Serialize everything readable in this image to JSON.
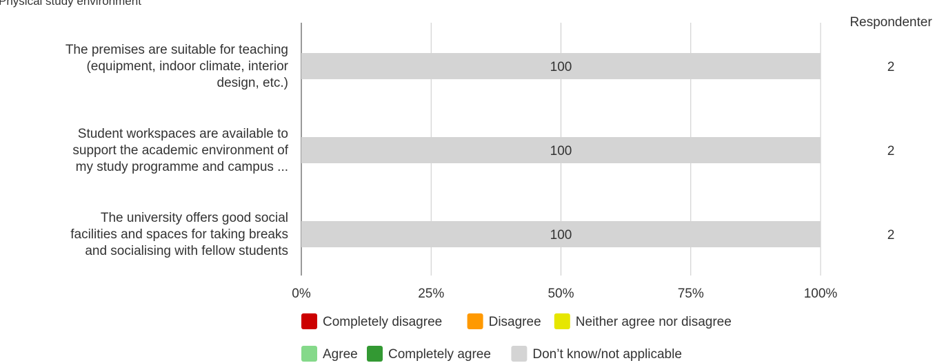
{
  "chart_data": {
    "type": "bar",
    "title": "Physical study environment",
    "right_column_header": "Respondenter",
    "categories": [
      [
        "The premises are suitable for teaching",
        "(equipment, indoor climate, interior",
        "design, etc.)"
      ],
      [
        "Student workspaces are available to",
        "support the academic environment of",
        "my study programme and campus ..."
      ],
      [
        "The university offers good social",
        "facilities and spaces for taking breaks",
        "and socialising with fellow students"
      ]
    ],
    "respondents": [
      "2",
      "2",
      "2"
    ],
    "xlim": [
      0,
      100
    ],
    "x_ticks": [
      0,
      25,
      50,
      75,
      100
    ],
    "x_tick_labels": [
      "0%",
      "25%",
      "50%",
      "75%",
      "100%"
    ],
    "grid": true,
    "stacked": true,
    "legend_position": "bottom",
    "series": [
      {
        "name": "Completely disagree",
        "color": "#cc0000",
        "values": [
          0,
          0,
          0
        ]
      },
      {
        "name": "Disagree",
        "color": "#ff9900",
        "values": [
          0,
          0,
          0
        ]
      },
      {
        "name": "Neither agree nor disagree",
        "color": "#e6e600",
        "values": [
          0,
          0,
          0
        ]
      },
      {
        "name": "Agree",
        "color": "#85d98a",
        "values": [
          0,
          0,
          0
        ]
      },
      {
        "name": "Completely agree",
        "color": "#339933",
        "values": [
          0,
          0,
          0
        ]
      },
      {
        "name": "Don’t know/not applicable",
        "color": "#d4d4d4",
        "values": [
          100,
          100,
          100
        ]
      }
    ]
  }
}
